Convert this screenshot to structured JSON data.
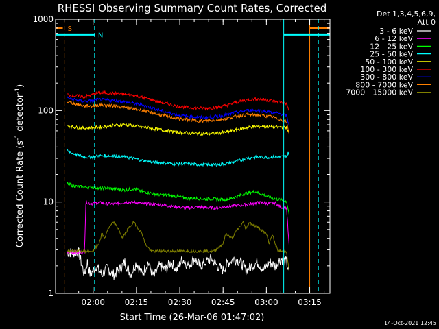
{
  "chart_data": {
    "type": "line",
    "title": "RHESSI Observing Summary Count Rates, Corrected",
    "xlabel": "Start Time (26-Mar-06 01:47:02)",
    "ylabel_main": "Corrected Count Rate (s",
    "ylabel_sup1": "-1",
    "ylabel_mid": " detector",
    "ylabel_sup2": "-1",
    "ylabel_end": ")",
    "yscale": "log",
    "ylim": [
      1,
      1000
    ],
    "xlim_minutes": [
      0,
      95
    ],
    "y_ticks": [
      {
        "value": 1,
        "label": "1"
      },
      {
        "value": 10,
        "label": "10"
      },
      {
        "value": 100,
        "label": "100"
      },
      {
        "value": 1000,
        "label": "1000"
      }
    ],
    "x_ticks": [
      {
        "minute": 13,
        "label": "02:00"
      },
      {
        "minute": 28,
        "label": "02:15"
      },
      {
        "minute": 43,
        "label": "02:30"
      },
      {
        "minute": 58,
        "label": "02:45"
      },
      {
        "minute": 73,
        "label": "03:00"
      },
      {
        "minute": 88,
        "label": "03:15"
      }
    ],
    "legend_header": [
      "Det 1,3,4,5,6,9,",
      "Att 0"
    ],
    "legend_position": "right",
    "series": [
      {
        "name": "3 - 6 keV",
        "color": "#ffffff",
        "x": [
          4,
          6,
          8,
          10,
          11,
          12,
          14,
          16,
          18,
          20,
          22,
          24,
          26,
          28,
          30,
          32,
          34,
          36,
          38,
          40,
          42,
          44,
          46,
          48,
          50,
          52,
          54,
          56,
          58,
          60,
          62,
          64,
          66,
          68,
          70,
          72,
          74,
          76,
          78,
          80,
          81
        ],
        "y": [
          2.8,
          2.8,
          2.8,
          1.6,
          2.2,
          1.6,
          2,
          1.6,
          1.9,
          1.6,
          1.8,
          2.2,
          1.6,
          2.2,
          1.6,
          2.2,
          1.5,
          2,
          1.8,
          2.2,
          1.8,
          2.4,
          2,
          2.4,
          2,
          2.2,
          2.4,
          2,
          1.8,
          2.2,
          2.4,
          2.2,
          1.8,
          2,
          2.2,
          1.8,
          2.2,
          2,
          2.4,
          2.2,
          1.6
        ]
      },
      {
        "name": "6 - 12 keV",
        "color": "#ff00ff",
        "x": [
          4,
          10,
          10.5,
          12,
          15,
          20,
          25,
          28,
          30,
          35,
          40,
          45,
          50,
          55,
          60,
          64,
          66,
          68,
          70,
          72,
          74,
          76,
          78,
          80,
          81
        ],
        "y": [
          2.8,
          2.8,
          10,
          9.6,
          9.8,
          9.5,
          10,
          9.8,
          9.6,
          9.4,
          9,
          8.6,
          8.8,
          8.6,
          9,
          9.2,
          9.4,
          9.6,
          9.8,
          9.8,
          9.6,
          9.8,
          8.8,
          8.6,
          2.8
        ]
      },
      {
        "name": "12 - 25 keV",
        "color": "#00ff00",
        "x": [
          4,
          6,
          10,
          13,
          15,
          18,
          21,
          24,
          27,
          30,
          33,
          36,
          39,
          42,
          45,
          48,
          51,
          54,
          57,
          60,
          63,
          66,
          69,
          72,
          75,
          78,
          80,
          81
        ],
        "y": [
          16,
          15,
          14.5,
          14.5,
          14,
          14.2,
          13.8,
          13.5,
          14,
          13,
          12.5,
          12,
          11.8,
          11.5,
          11,
          11,
          10.8,
          10.8,
          10.6,
          10.8,
          11.5,
          12.5,
          13,
          12,
          11,
          10.5,
          10.2,
          7
        ]
      },
      {
        "name": "25 - 50 keV",
        "color": "#00ffff",
        "x": [
          4,
          6,
          10,
          13,
          15,
          18,
          21,
          24,
          27,
          30,
          33,
          36,
          39,
          42,
          45,
          48,
          51,
          54,
          57,
          60,
          63,
          66,
          69,
          72,
          75,
          78,
          80,
          81
        ],
        "y": [
          36,
          34,
          31,
          31,
          32,
          32,
          32,
          31,
          30,
          28.5,
          27.5,
          27,
          26.5,
          26,
          26,
          25.8,
          25.5,
          25.5,
          25.7,
          26.5,
          28,
          30,
          31,
          31,
          31,
          31,
          32,
          36
        ]
      },
      {
        "name": "50 - 100 keV",
        "color": "#ffff00",
        "x": [
          4,
          6,
          10,
          13,
          15,
          18,
          21,
          24,
          27,
          30,
          33,
          36,
          39,
          42,
          45,
          48,
          51,
          54,
          57,
          60,
          63,
          66,
          69,
          72,
          75,
          78,
          80,
          81
        ],
        "y": [
          68,
          66,
          64,
          65,
          66,
          67,
          69,
          70,
          68,
          66,
          64,
          62,
          60,
          58,
          57,
          56,
          56,
          56,
          57,
          59,
          62,
          65,
          67,
          67,
          66,
          66,
          65,
          55
        ]
      },
      {
        "name": "100 - 300 keV",
        "color": "#ff0000",
        "x": [
          4,
          6,
          10,
          13,
          15,
          18,
          21,
          24,
          27,
          30,
          33,
          36,
          39,
          42,
          45,
          48,
          51,
          54,
          57,
          60,
          63,
          66,
          69,
          72,
          75,
          78,
          80,
          81
        ],
        "y": [
          150,
          146,
          142,
          150,
          156,
          156,
          154,
          150,
          146,
          140,
          132,
          124,
          118,
          112,
          109,
          107,
          106,
          107,
          110,
          116,
          124,
          130,
          134,
          132,
          128,
          124,
          118,
          98
        ]
      },
      {
        "name": "300 - 800 keV",
        "color": "#0000ff",
        "x": [
          4,
          6,
          10,
          13,
          15,
          18,
          21,
          24,
          27,
          30,
          33,
          36,
          39,
          42,
          45,
          48,
          51,
          54,
          57,
          60,
          63,
          66,
          69,
          72,
          75,
          78,
          80,
          81
        ],
        "y": [
          138,
          133,
          126,
          128,
          132,
          130,
          128,
          124,
          120,
          115,
          108,
          101,
          95,
          90,
          87,
          85,
          84,
          85,
          87,
          91,
          96,
          100,
          101,
          99,
          95,
          92,
          88,
          65
        ]
      },
      {
        "name": "800 - 7000 keV",
        "color": "#ff8000",
        "x": [
          4,
          6,
          10,
          13,
          15,
          18,
          21,
          24,
          27,
          30,
          33,
          36,
          39,
          42,
          45,
          48,
          51,
          54,
          57,
          60,
          63,
          66,
          69,
          72,
          75,
          78,
          80,
          81
        ],
        "y": [
          125,
          120,
          112,
          112,
          115,
          114,
          112,
          108,
          105,
          100,
          95,
          90,
          86,
          82,
          80,
          78,
          77,
          78,
          80,
          83,
          87,
          90,
          90,
          88,
          85,
          80,
          74,
          55
        ]
      },
      {
        "name": "7000 - 15000 keV",
        "color": "#808000",
        "x": [
          4,
          10,
          11,
          13,
          15,
          16,
          17,
          18,
          20,
          22,
          23,
          25,
          27,
          28,
          30,
          31,
          33,
          34,
          35,
          37,
          40,
          45,
          50,
          55,
          58,
          59,
          61,
          63,
          65,
          66,
          67,
          69,
          71,
          73,
          74,
          75,
          76,
          77,
          79,
          80,
          81
        ],
        "y": [
          2.9,
          2.9,
          2.9,
          2.9,
          3.5,
          4.5,
          4,
          5,
          6,
          5,
          4,
          5,
          6,
          5.5,
          4.5,
          3.5,
          2.9,
          2.9,
          2.9,
          2.9,
          2.9,
          2.9,
          2.9,
          2.9,
          3.5,
          4.5,
          4,
          5,
          6,
          5,
          6,
          5.5,
          5,
          4.5,
          3.5,
          4.5,
          3.5,
          2.9,
          2.9,
          2.9,
          1.6
        ]
      }
    ],
    "markers": [
      {
        "label": "S",
        "color": "#ff8000",
        "dashed_minute": 3,
        "solid_minute": 88,
        "bar_from": 0,
        "bar_to": 2.5,
        "bar2_from": 88,
        "bar2_to": 95,
        "y_value": 800
      },
      {
        "label": "N",
        "color": "#00ffff",
        "dashed_minute": 13.5,
        "solid_minute": 79,
        "bar_from": 0,
        "bar_to": 13.5,
        "bar2_from": 79,
        "bar2_to": 95,
        "y_value": 680
      }
    ],
    "extra_vlines": [
      {
        "minute": 0,
        "color": "#00ffff",
        "style": "solid"
      },
      {
        "minute": 91,
        "color": "#00ffff",
        "style": "dashed"
      }
    ],
    "footer_timestamp": "14-Oct-2021 12:45"
  }
}
